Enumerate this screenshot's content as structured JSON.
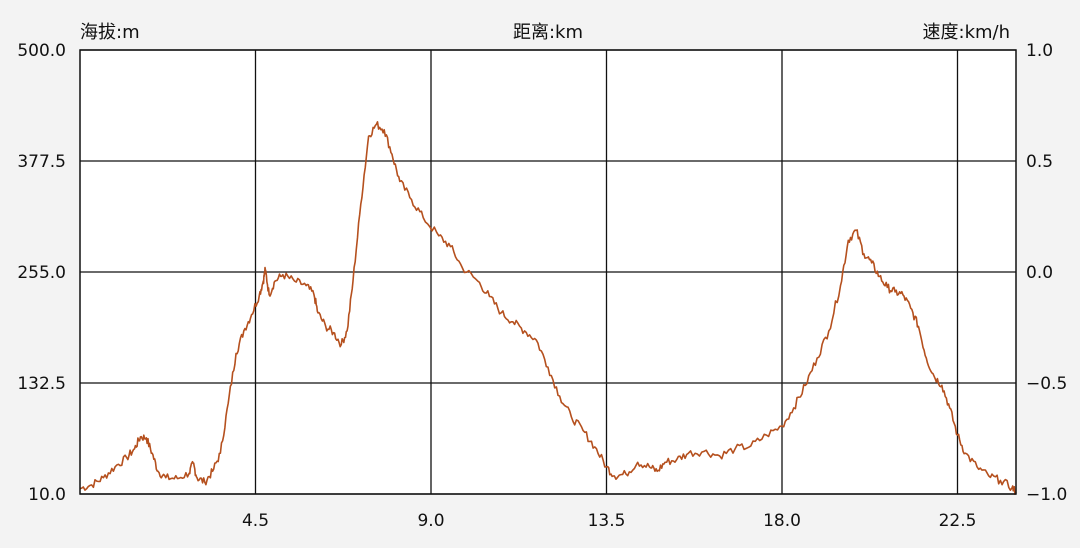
{
  "chart_data": {
    "type": "line",
    "title": "",
    "header": {
      "left_label": "海拔:m",
      "center_label": "距离:km",
      "right_label": "速度:km/h"
    },
    "xlabel": "距离:km",
    "ylabel": "海拔:m",
    "y2label": "速度:km/h",
    "xlim": [
      0,
      24
    ],
    "ylim": [
      10,
      500
    ],
    "y2lim": [
      -1.0,
      1.0
    ],
    "x_ticks": [
      "4.5",
      "9.0",
      "13.5",
      "18.0",
      "22.5"
    ],
    "x_tick_values": [
      4.5,
      9.0,
      13.5,
      18.0,
      22.5
    ],
    "y_ticks": [
      "10.0",
      "132.5",
      "255.0",
      "377.5",
      "500.0"
    ],
    "y_tick_values": [
      10,
      132.5,
      255,
      377.5,
      500
    ],
    "y2_ticks": [
      "−1.0",
      "−0.5",
      "0.0",
      "0.5",
      "1.0"
    ],
    "y2_tick_values": [
      -1.0,
      -0.5,
      0.0,
      0.5,
      1.0
    ],
    "grid": true,
    "series": [
      {
        "color": "#b5501e",
        "points": [
          [
            0.0,
            16
          ],
          [
            0.3,
            20
          ],
          [
            0.6,
            28
          ],
          [
            0.9,
            40
          ],
          [
            1.2,
            50
          ],
          [
            1.4,
            60
          ],
          [
            1.55,
            73
          ],
          [
            1.7,
            72
          ],
          [
            1.85,
            55
          ],
          [
            2.0,
            35
          ],
          [
            2.2,
            28
          ],
          [
            2.5,
            27
          ],
          [
            2.8,
            33
          ],
          [
            2.9,
            44
          ],
          [
            3.0,
            28
          ],
          [
            3.2,
            23
          ],
          [
            3.4,
            35
          ],
          [
            3.6,
            55
          ],
          [
            3.8,
            110
          ],
          [
            4.0,
            165
          ],
          [
            4.2,
            190
          ],
          [
            4.4,
            208
          ],
          [
            4.6,
            230
          ],
          [
            4.7,
            245
          ],
          [
            4.75,
            258
          ],
          [
            4.85,
            230
          ],
          [
            5.0,
            245
          ],
          [
            5.2,
            252
          ],
          [
            5.5,
            245
          ],
          [
            5.8,
            240
          ],
          [
            6.0,
            230
          ],
          [
            6.1,
            210
          ],
          [
            6.3,
            195
          ],
          [
            6.5,
            188
          ],
          [
            6.7,
            175
          ],
          [
            6.85,
            190
          ],
          [
            7.0,
            245
          ],
          [
            7.2,
            330
          ],
          [
            7.4,
            405
          ],
          [
            7.6,
            418
          ],
          [
            7.8,
            412
          ],
          [
            8.0,
            385
          ],
          [
            8.2,
            355
          ],
          [
            8.5,
            335
          ],
          [
            8.8,
            315
          ],
          [
            9.2,
            295
          ],
          [
            9.5,
            283
          ],
          [
            9.8,
            260
          ],
          [
            10.2,
            245
          ],
          [
            10.5,
            228
          ],
          [
            10.8,
            210
          ],
          [
            11.1,
            200
          ],
          [
            11.4,
            190
          ],
          [
            11.7,
            180
          ],
          [
            12.0,
            150
          ],
          [
            12.3,
            118
          ],
          [
            12.6,
            95
          ],
          [
            12.9,
            80
          ],
          [
            13.2,
            62
          ],
          [
            13.5,
            40
          ],
          [
            13.7,
            30
          ],
          [
            14.0,
            32
          ],
          [
            14.3,
            45
          ],
          [
            14.6,
            40
          ],
          [
            14.8,
            35
          ],
          [
            15.0,
            45
          ],
          [
            15.3,
            48
          ],
          [
            15.6,
            55
          ],
          [
            16.0,
            57
          ],
          [
            16.4,
            52
          ],
          [
            16.8,
            60
          ],
          [
            17.2,
            63
          ],
          [
            17.6,
            75
          ],
          [
            18.0,
            85
          ],
          [
            18.3,
            105
          ],
          [
            18.6,
            130
          ],
          [
            18.9,
            160
          ],
          [
            19.2,
            190
          ],
          [
            19.5,
            240
          ],
          [
            19.7,
            290
          ],
          [
            19.9,
            301
          ],
          [
            20.1,
            275
          ],
          [
            20.3,
            265
          ],
          [
            20.5,
            250
          ],
          [
            20.7,
            238
          ],
          [
            20.9,
            233
          ],
          [
            21.1,
            230
          ],
          [
            21.3,
            215
          ],
          [
            21.5,
            195
          ],
          [
            21.7,
            160
          ],
          [
            21.9,
            140
          ],
          [
            22.1,
            130
          ],
          [
            22.3,
            105
          ],
          [
            22.5,
            75
          ],
          [
            22.7,
            55
          ],
          [
            23.0,
            40
          ],
          [
            23.3,
            30
          ],
          [
            23.6,
            25
          ],
          [
            23.9,
            17
          ],
          [
            24.0,
            12
          ]
        ]
      }
    ]
  }
}
